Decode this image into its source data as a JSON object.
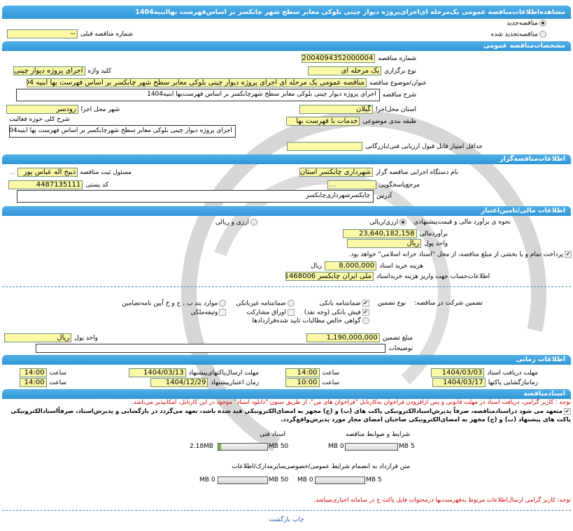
{
  "header": {
    "title": "مشاهده‌اطلاعات‌مناقصه عمومی یک‌مرحله ای‌اجرای‌پروژه دیوار چینی بلوکی معابر سطح شهر چابکسر بر اساس‌فهرست بهاابنیه1404"
  },
  "tender_type": {
    "new_label": "مناقصه‌جدید",
    "new_selected": true,
    "renewed_label": "مناقصه‌تجدید شده",
    "renewed_selected": false,
    "prev_number_label": "شماره مناقصه قبلی",
    "prev_number_value": "--"
  },
  "general": {
    "section_title": "مشخصات‌مناقصه عمومی",
    "number_label": "شماره مناقصه",
    "number_value": "2004094352000004",
    "holding_type_label": "نوع برگزاری",
    "holding_type_value": "یک مرحله ای",
    "keyword_label": "کلید واژه",
    "keyword_value": "اجرای پروژه دیوار چینی بلوکی",
    "subject_label": "عنوان/موضوع مناقصه",
    "subject_value": "مناقصه عمومی یک مرحله ای اجرای پروژه دیوار چینی بلوکی معابر سطح شهر چابکسر بر اساس فهرست بها ابنیه 1404",
    "description_label": "شرح مناقصه",
    "description_value": "اجرای پروژه  دیوار چینی بلوکی معابر سطح شهرچابکسر بر اساس فهرست‌بها ابنیه1404",
    "province_label": "استان محل‌اجرا",
    "province_value": "گیلان",
    "city_label": "شهر محل اجرا",
    "city_value": "رودسر",
    "category_label": "طبقه بندی موضوعی",
    "category_value": "خدمات با فهرست بها",
    "activity_label": "شرح کلی حوزه فعالیت",
    "activity_value": "اجرای پروژه  دیوار چینی بلوکی معابر سطح شهرچابکسر بر اساس فهرست بها ابنیه1404",
    "min_score_label": "حداقل امتیاز قابل قبول ارزیابی فنی/بازرگانی",
    "min_score_value": ""
  },
  "organizer": {
    "section_title": "اطلاعات‌مناقصه‌گزار",
    "org_label": "نام دستگاه اجرایی مناقصه گزار",
    "org_value": "شهرداری چابکسر استان گیلان",
    "responsible_label": "مسئول ثبت مناقصه",
    "responsible_value": "ذبیح اله عباس پور",
    "more": "...",
    "reference_label": "مرجع‌پاسخگویی",
    "reference_value": "...",
    "postal_label": "کد پستی",
    "postal_value": "4487135111",
    "address_label": "آدرس",
    "address_value": "چابکسرشهرداری‌چابکسر"
  },
  "finance": {
    "section_title": "اطلاعات مالی/تامین‌اعتبار",
    "estimate_method_label": "نحوه ی برآورد مالی و قیمت‌پیشنهادی",
    "opt_rial": "ارزی/ریالی",
    "opt_rial_selected": true,
    "opt_both": "ارزی و ریالی",
    "opt_both_selected": false,
    "estimate_label": "برآوردمالی",
    "estimate_value": "23,640,182,158",
    "currency_label": "واحد پول",
    "currency_value": "ریال",
    "treasury_note": "پرداخت تمام و یا بخشی  از مبلغ مناقصه،  از محل \"اسناد خزانه اسلامی\" خواهد بود.",
    "treasury_checked": true,
    "doc_fee_label": "هزینه خرید اسناد",
    "doc_fee_value": "8,000,000",
    "doc_fee_unit": "ریال",
    "account_label": "اطلاعات‌حساب جهت واریز هزینه خریداسناد",
    "account_value": "ملی ایران چابکسر 0001468006",
    "guarantee_label": "تضمین شرکت در مناقصه:",
    "guarantee_type_label": "نوع تضمین",
    "guarantee_options": [
      {
        "label": "ضمانتنامه بانکی",
        "checked": true
      },
      {
        "label": "فیش بانکی (وجه نقد)",
        "checked": true
      },
      {
        "label": "گواهی خالص مطالبات تایید شده‌قراردادها",
        "checked": false
      },
      {
        "label": "ضمانتنامه غیربانکی",
        "checked": false
      },
      {
        "label": "اوراق مشارکت",
        "checked": false
      },
      {
        "label": "موارد بند ب ، ج و خ آیین نامه‌تضامین",
        "checked": false
      },
      {
        "label": "وثیقه‌ملکی",
        "checked": false
      }
    ],
    "guarantee_amount_label": "مبلغ تضمین",
    "guarantee_amount_value": "1,190,000,000",
    "guarantee_currency_label": "واحد پول",
    "guarantee_currency_value": "ریال",
    "notes_label": "توضیحات",
    "notes_value": ""
  },
  "timing": {
    "section_title": "اطلاعات زمانی",
    "doc_deadline_label": "مهلت دریافت اسناد",
    "doc_deadline_date": "1404/03/03",
    "doc_deadline_time": "14:00",
    "submit_deadline_label": "مهلت ارسال‌پاکتهای‌پیشنهاد",
    "submit_deadline_date": "1404/03/13",
    "submit_deadline_time": "14:00",
    "opening_label": "زمانبازگشایی پاکتها",
    "opening_date": "1404/03/17",
    "opening_time": "10:00",
    "validity_label": "زمان اعتبارپیشنهاد",
    "validity_date": "1404/12/29",
    "validity_time": "14:00",
    "time_label": "ساعت"
  },
  "documents": {
    "section_title": "اسنادمناقصه",
    "notice": "توجه : کاربر گرامی، دریافت اسناد  در مهلت قانونی و پس ازافزودن فراخوان به‌کارتابل \"فراخوان های من\"،  از طریق  ستون \"دانلود اسناد\" موجود  در این کارتابل، امکانپذیر می‌باشد.",
    "commitment": "متعهد می شود دراسنادمناقصه، صرفاً پذیرش‌اسنادالکترونیکی پاکت های (ب) و (ج) مجهز به امضای‌الکترونیکی قید شده باشد، تعهد می‌گردد در بازگشایی و پذیرش‌اسناد، صرفاًاسنادالکترونیکی پاکت های پیشنهاد (ب) و (ج) مجهز به امضای‌الکترونیکی صاحبان امضای مجاز مورد پذیرش‌واقع‌گردد.",
    "commitment_checked": true,
    "files": [
      {
        "label": "شرایط و ضوابط مناقصه",
        "size": "0 MB",
        "max": "5 MB",
        "fill": 0
      },
      {
        "label": "اسناد فنی",
        "size": "2.18MB",
        "max": "50 MB",
        "fill": 0.0436
      },
      {
        "label": "متن قرارداد به انضمام شرایط عمومی/خصوصی",
        "size": "0 MB",
        "max": "5 MB",
        "fill": 0
      },
      {
        "label": "سایرمدارک/اطلاعات",
        "size": "0 MB",
        "max": "50 MB",
        "fill": 0
      }
    ],
    "notice2": "توجه: کاربر گرامی ارسال‌اطلاعات مربوط به‌فهرست‌بها  درمحتوات فایل پاکت ج  در سامانه اجباری‌میباشد."
  },
  "footer": {
    "print": "چاپ",
    "back": "بازگشت"
  },
  "colors": {
    "header": "#2f95d6",
    "input_bg": "#fbf8a6",
    "notice": "#d00000"
  }
}
